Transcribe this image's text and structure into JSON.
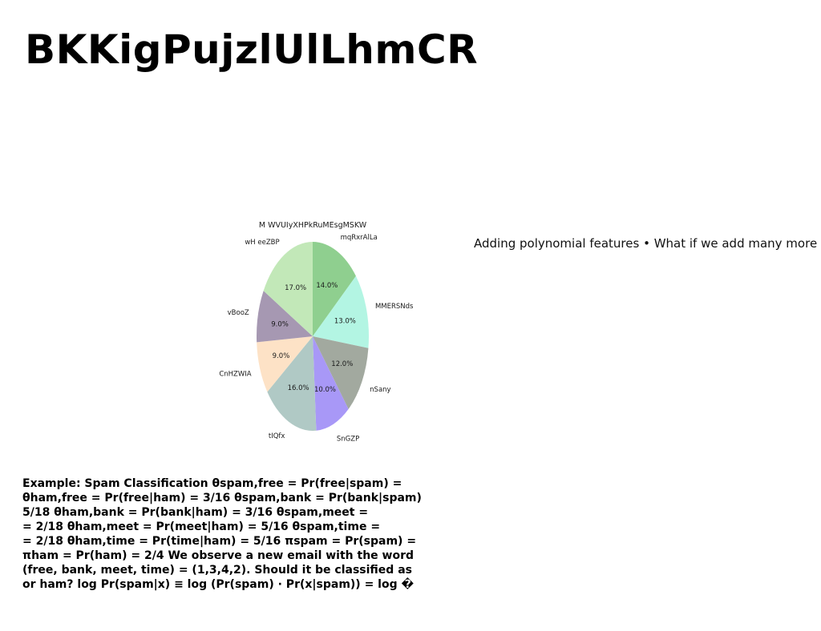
{
  "page": {
    "title": "BKKigPujzlUlLhmCR",
    "side_text": "Adding polynomial features • What if we add many more",
    "body_lines": [
      "Example: Spam Classification θspam,free = Pr(free|spam) =",
      "θham,free = Pr(free|ham) = 3/16 θspam,bank = Pr(bank|spam)",
      "5/18 θham,bank = Pr(bank|ham) = 3/16 θspam,meet =",
      "= 2/18 θham,meet = Pr(meet|ham) = 5/16 θspam,time =",
      "= 2/18 θham,time = Pr(time|ham) = 5/16 πspam = Pr(spam) =",
      "πham = Pr(ham) = 2/4 We observe a new email with the word",
      "(free, bank, meet, time) = (1,3,4,2). Should it be classified as",
      "or ham? log Pr(spam|x) ≡ log (Pr(spam) · Pr(x|spam)) = log �"
    ]
  },
  "chart_data": {
    "type": "pie",
    "title": "M WVUIyXHPkRuMEsgMSKW",
    "start_angle_deg": 90,
    "direction": "clockwise",
    "slices": [
      {
        "label": "mqRxrAlLa",
        "value": 14.0,
        "pct_label": "14.0%",
        "color": "#8fcf8f"
      },
      {
        "label": "MMERSNds",
        "value": 13.0,
        "pct_label": "13.0%",
        "color": "#b3f5e3"
      },
      {
        "label": "nSany",
        "value": 12.0,
        "pct_label": "12.0%",
        "color": "#a2a99f"
      },
      {
        "label": "SnGZP",
        "value": 10.0,
        "pct_label": "10.0%",
        "color": "#a898f7"
      },
      {
        "label": "tIQfx",
        "value": 16.0,
        "pct_label": "16.0%",
        "color": "#b0c9c5"
      },
      {
        "label": "CnHZWIA",
        "value": 9.0,
        "pct_label": "9.0%",
        "color": "#fde2c6"
      },
      {
        "label": "vBooZ",
        "value": 9.0,
        "pct_label": "9.0%",
        "color": "#a698b2"
      },
      {
        "label": "wH eeZBP",
        "value": 17.0,
        "pct_label": "17.0%",
        "color": "#c2e8b8"
      }
    ]
  }
}
